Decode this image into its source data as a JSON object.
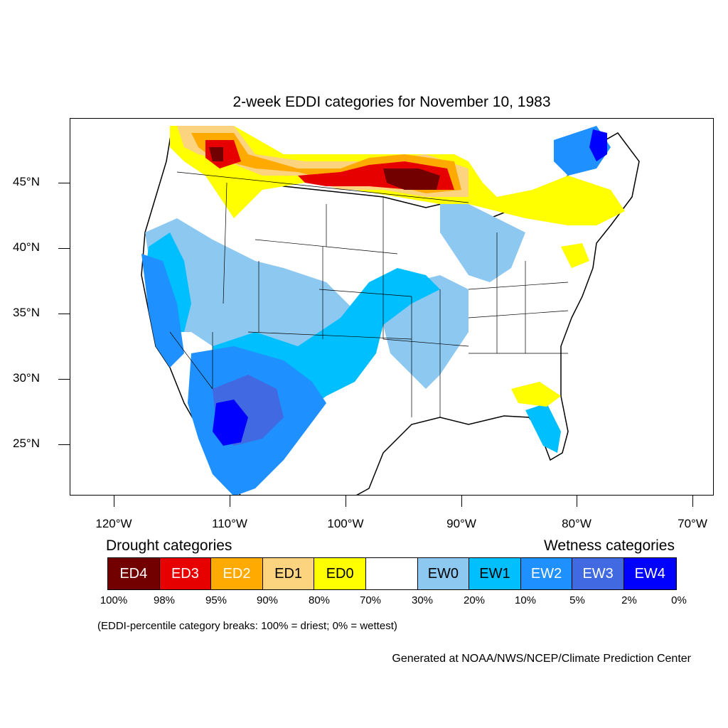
{
  "title": "2-week EDDI categories for November 10, 1983",
  "lat_labels": [
    "45°N",
    "40°N",
    "35°N",
    "30°N",
    "25°N"
  ],
  "lon_labels": [
    "120°W",
    "110°W",
    "100°W",
    "90°W",
    "80°W",
    "70°W"
  ],
  "legend": {
    "drought_header": "Drought categories",
    "wetness_header": "Wetness categories",
    "categories": [
      {
        "label": "ED4",
        "color": "#730000",
        "text_color": "#ffffff"
      },
      {
        "label": "ED3",
        "color": "#e60000",
        "text_color": "#ffffff"
      },
      {
        "label": "ED2",
        "color": "#ffaa00",
        "text_color": "#ffffff"
      },
      {
        "label": "ED1",
        "color": "#fcd37f",
        "text_color": "#000000"
      },
      {
        "label": "ED0",
        "color": "#ffff00",
        "text_color": "#000000"
      },
      {
        "label": "",
        "color": "#ffffff",
        "text_color": "#000000"
      },
      {
        "label": "EW0",
        "color": "#8cc8f0",
        "text_color": "#000000"
      },
      {
        "label": "EW1",
        "color": "#00bfff",
        "text_color": "#000000"
      },
      {
        "label": "EW2",
        "color": "#1e90ff",
        "text_color": "#ffffff"
      },
      {
        "label": "EW3",
        "color": "#4169e1",
        "text_color": "#ffffff"
      },
      {
        "label": "EW4",
        "color": "#0000ff",
        "text_color": "#ffffff"
      }
    ],
    "breaks": [
      "100%",
      "98%",
      "95%",
      "90%",
      "80%",
      "70%",
      "30%",
      "20%",
      "10%",
      "5%",
      "2%",
      "0%"
    ]
  },
  "note": "(EDDI-percentile category breaks: 100% = driest; 0% = wettest)",
  "credit": "Generated at NOAA/NWS/NCEP/Climate Prediction Center"
}
